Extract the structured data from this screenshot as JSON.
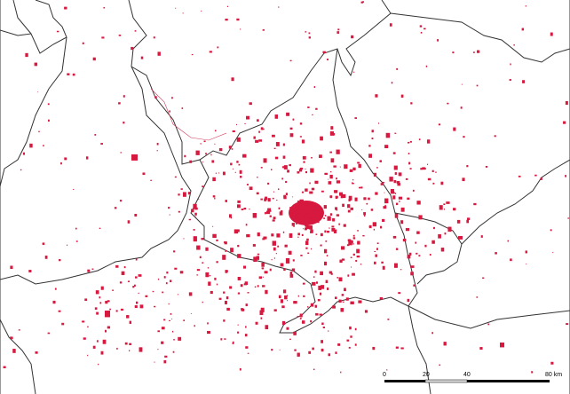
{
  "map": {
    "feature_color": "#d7193f",
    "border_color": "#333333",
    "scale_bar": {
      "labels": [
        "0",
        "20",
        "40",
        "80 km"
      ],
      "unit": "km"
    }
  }
}
